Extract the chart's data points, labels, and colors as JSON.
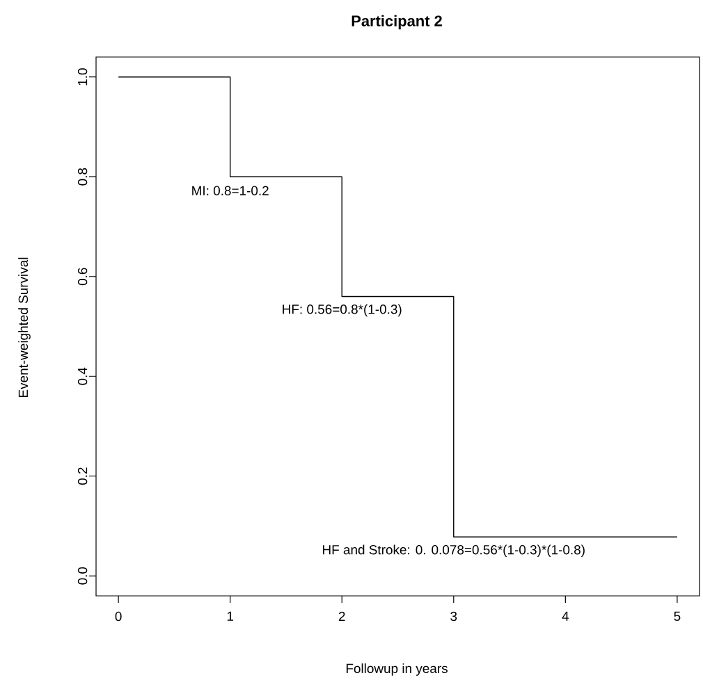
{
  "chart_data": {
    "type": "step",
    "title": "Participant 2",
    "xlabel": "Followup in years",
    "ylabel": "Event-weighted Survival",
    "x": [
      0,
      1,
      2,
      3,
      5
    ],
    "series": [
      {
        "color": "#000000",
        "values": [
          1,
          0.8,
          0.56,
          0.078,
          0.078
        ]
      }
    ],
    "xlim": [
      -0.2,
      5.2
    ],
    "ylim": [
      -0.04,
      1.04
    ],
    "xticks": [
      0,
      1,
      2,
      3,
      4,
      5
    ],
    "yticks": [
      {
        "value": 0,
        "label": "0.0"
      },
      {
        "value": 0.2,
        "label": "0.2"
      },
      {
        "value": 0.4,
        "label": "0.4"
      },
      {
        "value": 0.6,
        "label": "0.6"
      },
      {
        "value": 0.8,
        "label": "0.8"
      },
      {
        "value": 1,
        "label": "1.0"
      }
    ],
    "annotations": [
      "MI: 0.8=1-0.2",
      "HF: 0.56=0.8*(1-0.3)",
      "HF and Stroke: 0. 0.078=0.56*(1-0.3)*(1-0.8)"
    ],
    "grid": false,
    "marker": "none",
    "line_style": "solid"
  }
}
